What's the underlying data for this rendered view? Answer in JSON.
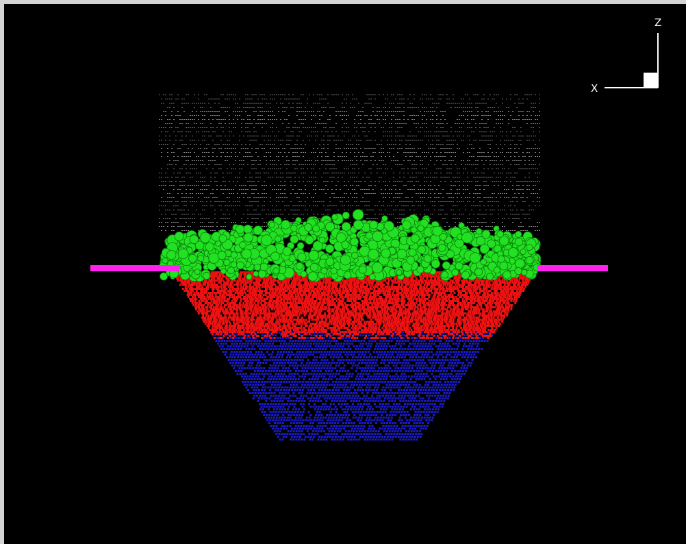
{
  "scene": {
    "background": "#000000",
    "frame_color": "#d4d4d4",
    "layers": {
      "grid_dots": "#bdbdbd",
      "top_particles": "#22e022",
      "middle_particles": "#ee1111",
      "bottom_particles": "#1a1acc",
      "plate": "#ff22ee"
    }
  },
  "axes": {
    "z_label": "Z",
    "x_label": "X"
  }
}
